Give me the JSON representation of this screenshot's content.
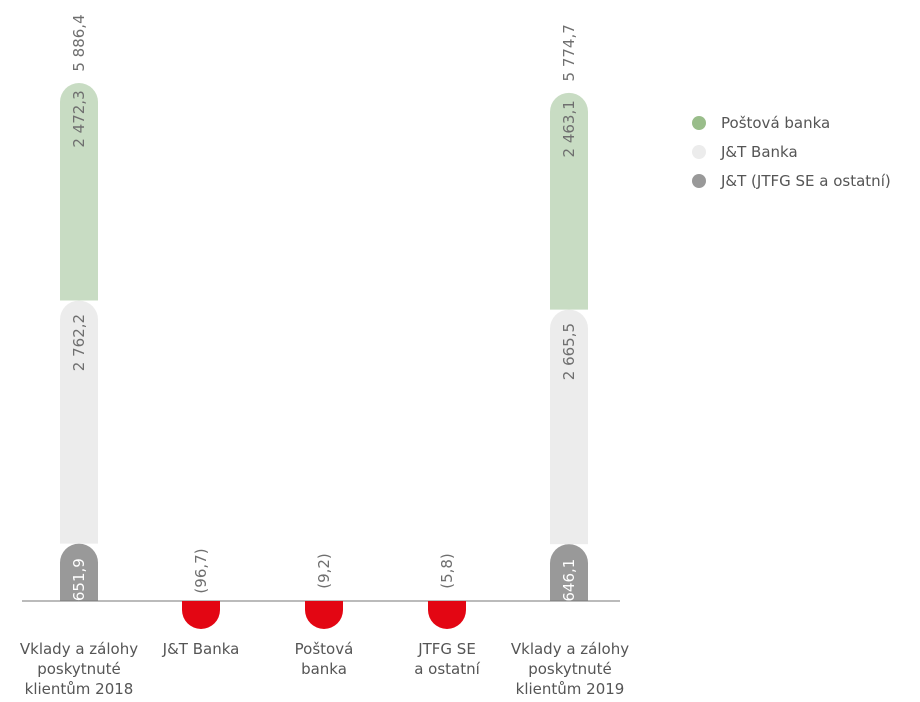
{
  "chart_data": {
    "type": "bar",
    "subtype": "waterfall",
    "categories": [
      [
        "Vklady a zálohy",
        "poskytnuté",
        "klientům 2018"
      ],
      [
        "J&T Banka"
      ],
      [
        "Poštová",
        "banka"
      ],
      [
        "JTFG SE",
        "a ostatní"
      ],
      [
        "Vklady a zálohy",
        "poskytnuté",
        "klientům 2019"
      ]
    ],
    "series": [
      {
        "name": "J&T (JTFG SE a ostatní)",
        "color": "#999999",
        "values": [
          651.9,
          null,
          null,
          null,
          646.1
        ],
        "labels": [
          "651,9",
          null,
          null,
          null,
          "646,1"
        ]
      },
      {
        "name": "J&T Banka",
        "color": "#ececec",
        "values": [
          2762.2,
          null,
          null,
          null,
          2665.5
        ],
        "labels": [
          "2 762,2",
          null,
          null,
          null,
          "2 665,5"
        ]
      },
      {
        "name": "Poštová banka",
        "color": "#c8dcc3",
        "values": [
          2472.3,
          null,
          null,
          null,
          2463.1
        ],
        "labels": [
          "2 472,3",
          null,
          null,
          null,
          "2 463,1"
        ]
      }
    ],
    "changes": {
      "color": "#e30613",
      "values": [
        null,
        -96.7,
        -9.2,
        -5.8,
        null
      ],
      "labels": [
        null,
        "(96,7)",
        "(9,2)",
        "(5,8)",
        null
      ]
    },
    "totals": {
      "values": [
        5886.4,
        null,
        null,
        null,
        5774.7
      ],
      "labels": [
        "5 886,4",
        null,
        null,
        null,
        "5 774,7"
      ]
    },
    "legend": {
      "position": "right",
      "items": [
        {
          "label": "Poštová banka",
          "color": "#99bd8a"
        },
        {
          "label": "J&T Banka",
          "color": "#ececec"
        },
        {
          "label": "J&T (JTFG SE a ostatní)",
          "color": "#999999"
        }
      ]
    },
    "grid": false
  }
}
